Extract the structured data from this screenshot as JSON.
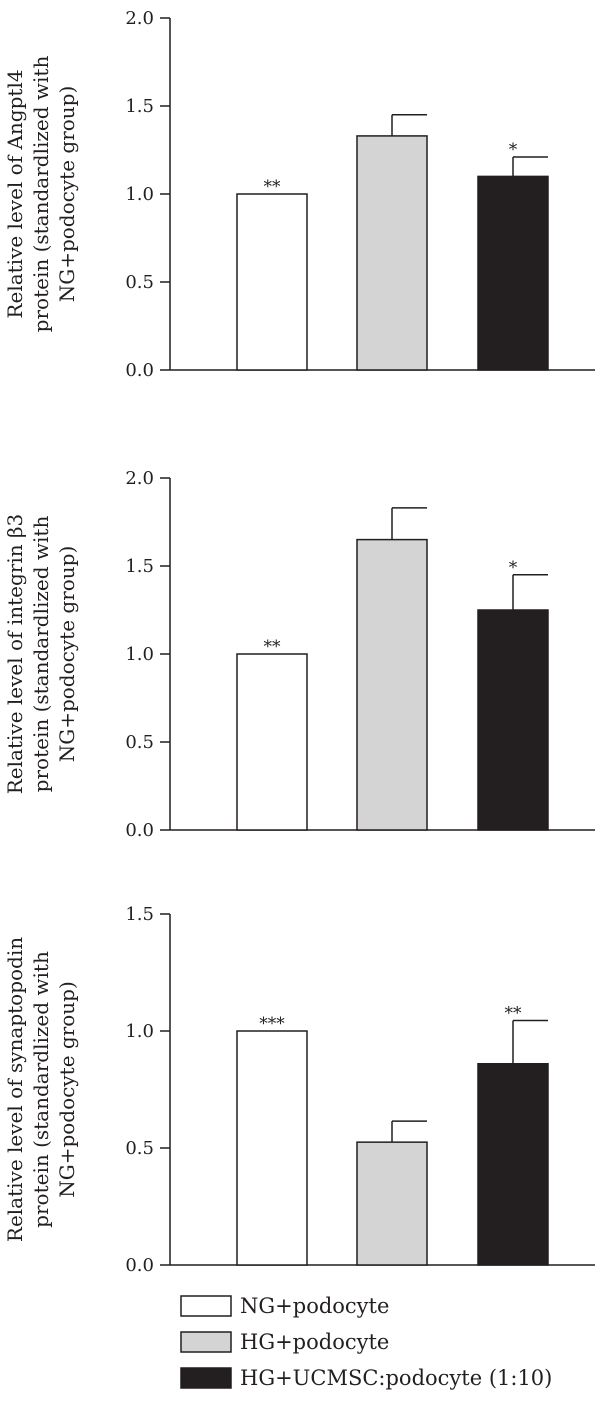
{
  "chart_data": [
    {
      "type": "bar",
      "categories": [
        "NG+podocyte",
        "HG+podocyte",
        "HG+UCMSC:podocyte (1:10)"
      ],
      "values": [
        1.0,
        1.33,
        1.1
      ],
      "errors": [
        0.0,
        0.12,
        0.11
      ],
      "significance": [
        "**",
        "",
        "*"
      ],
      "ylabel_lines": [
        "Relative level of Angptl4",
        "protein (standardlized with",
        "NG+podocyte group)"
      ],
      "ylim": [
        0,
        2.0
      ],
      "yticks": [
        0.0,
        0.5,
        1.0,
        1.5,
        2.0
      ],
      "ytick_labels": [
        "0.0",
        "0.5",
        "1.0",
        "1.5",
        "2.0"
      ]
    },
    {
      "type": "bar",
      "categories": [
        "NG+podocyte",
        "HG+podocyte",
        "HG+UCMSC:podocyte (1:10)"
      ],
      "values": [
        1.0,
        1.65,
        1.25
      ],
      "errors": [
        0.0,
        0.18,
        0.2
      ],
      "significance": [
        "**",
        "",
        "*"
      ],
      "ylabel_lines": [
        "Relative level of integrin β3",
        "protein (standardlized with",
        "NG+podocyte group)"
      ],
      "ylim": [
        0,
        2.0
      ],
      "yticks": [
        0.0,
        0.5,
        1.0,
        1.5,
        2.0
      ],
      "ytick_labels": [
        "0.0",
        "0.5",
        "1.0",
        "1.5",
        "2.0"
      ]
    },
    {
      "type": "bar",
      "categories": [
        "NG+podocyte",
        "HG+podocyte",
        "HG+UCMSC:podocyte (1:10)"
      ],
      "values": [
        1.0,
        0.525,
        0.86
      ],
      "errors": [
        0.0,
        0.09,
        0.185
      ],
      "significance": [
        "***",
        "",
        "**"
      ],
      "ylabel_lines": [
        "Relative level of synaptopodin",
        "protein (standardlized with",
        "NG+podocyte group)"
      ],
      "ylim": [
        0,
        1.5
      ],
      "yticks": [
        0.0,
        0.5,
        1.0,
        1.5
      ],
      "ytick_labels": [
        "0.0",
        "0.5",
        "1.0",
        "1.5"
      ]
    }
  ],
  "legend": {
    "entries": [
      {
        "label": "NG+podocyte",
        "color": "#ffffff"
      },
      {
        "label": "HG+podocyte",
        "color": "#d4d4d4"
      },
      {
        "label": "HG+UCMSC:podocyte (1:10)",
        "color": "#231f20"
      }
    ]
  },
  "colors": {
    "bars": [
      "#ffffff",
      "#d4d4d4",
      "#231f20"
    ],
    "stroke": "#231f20"
  }
}
